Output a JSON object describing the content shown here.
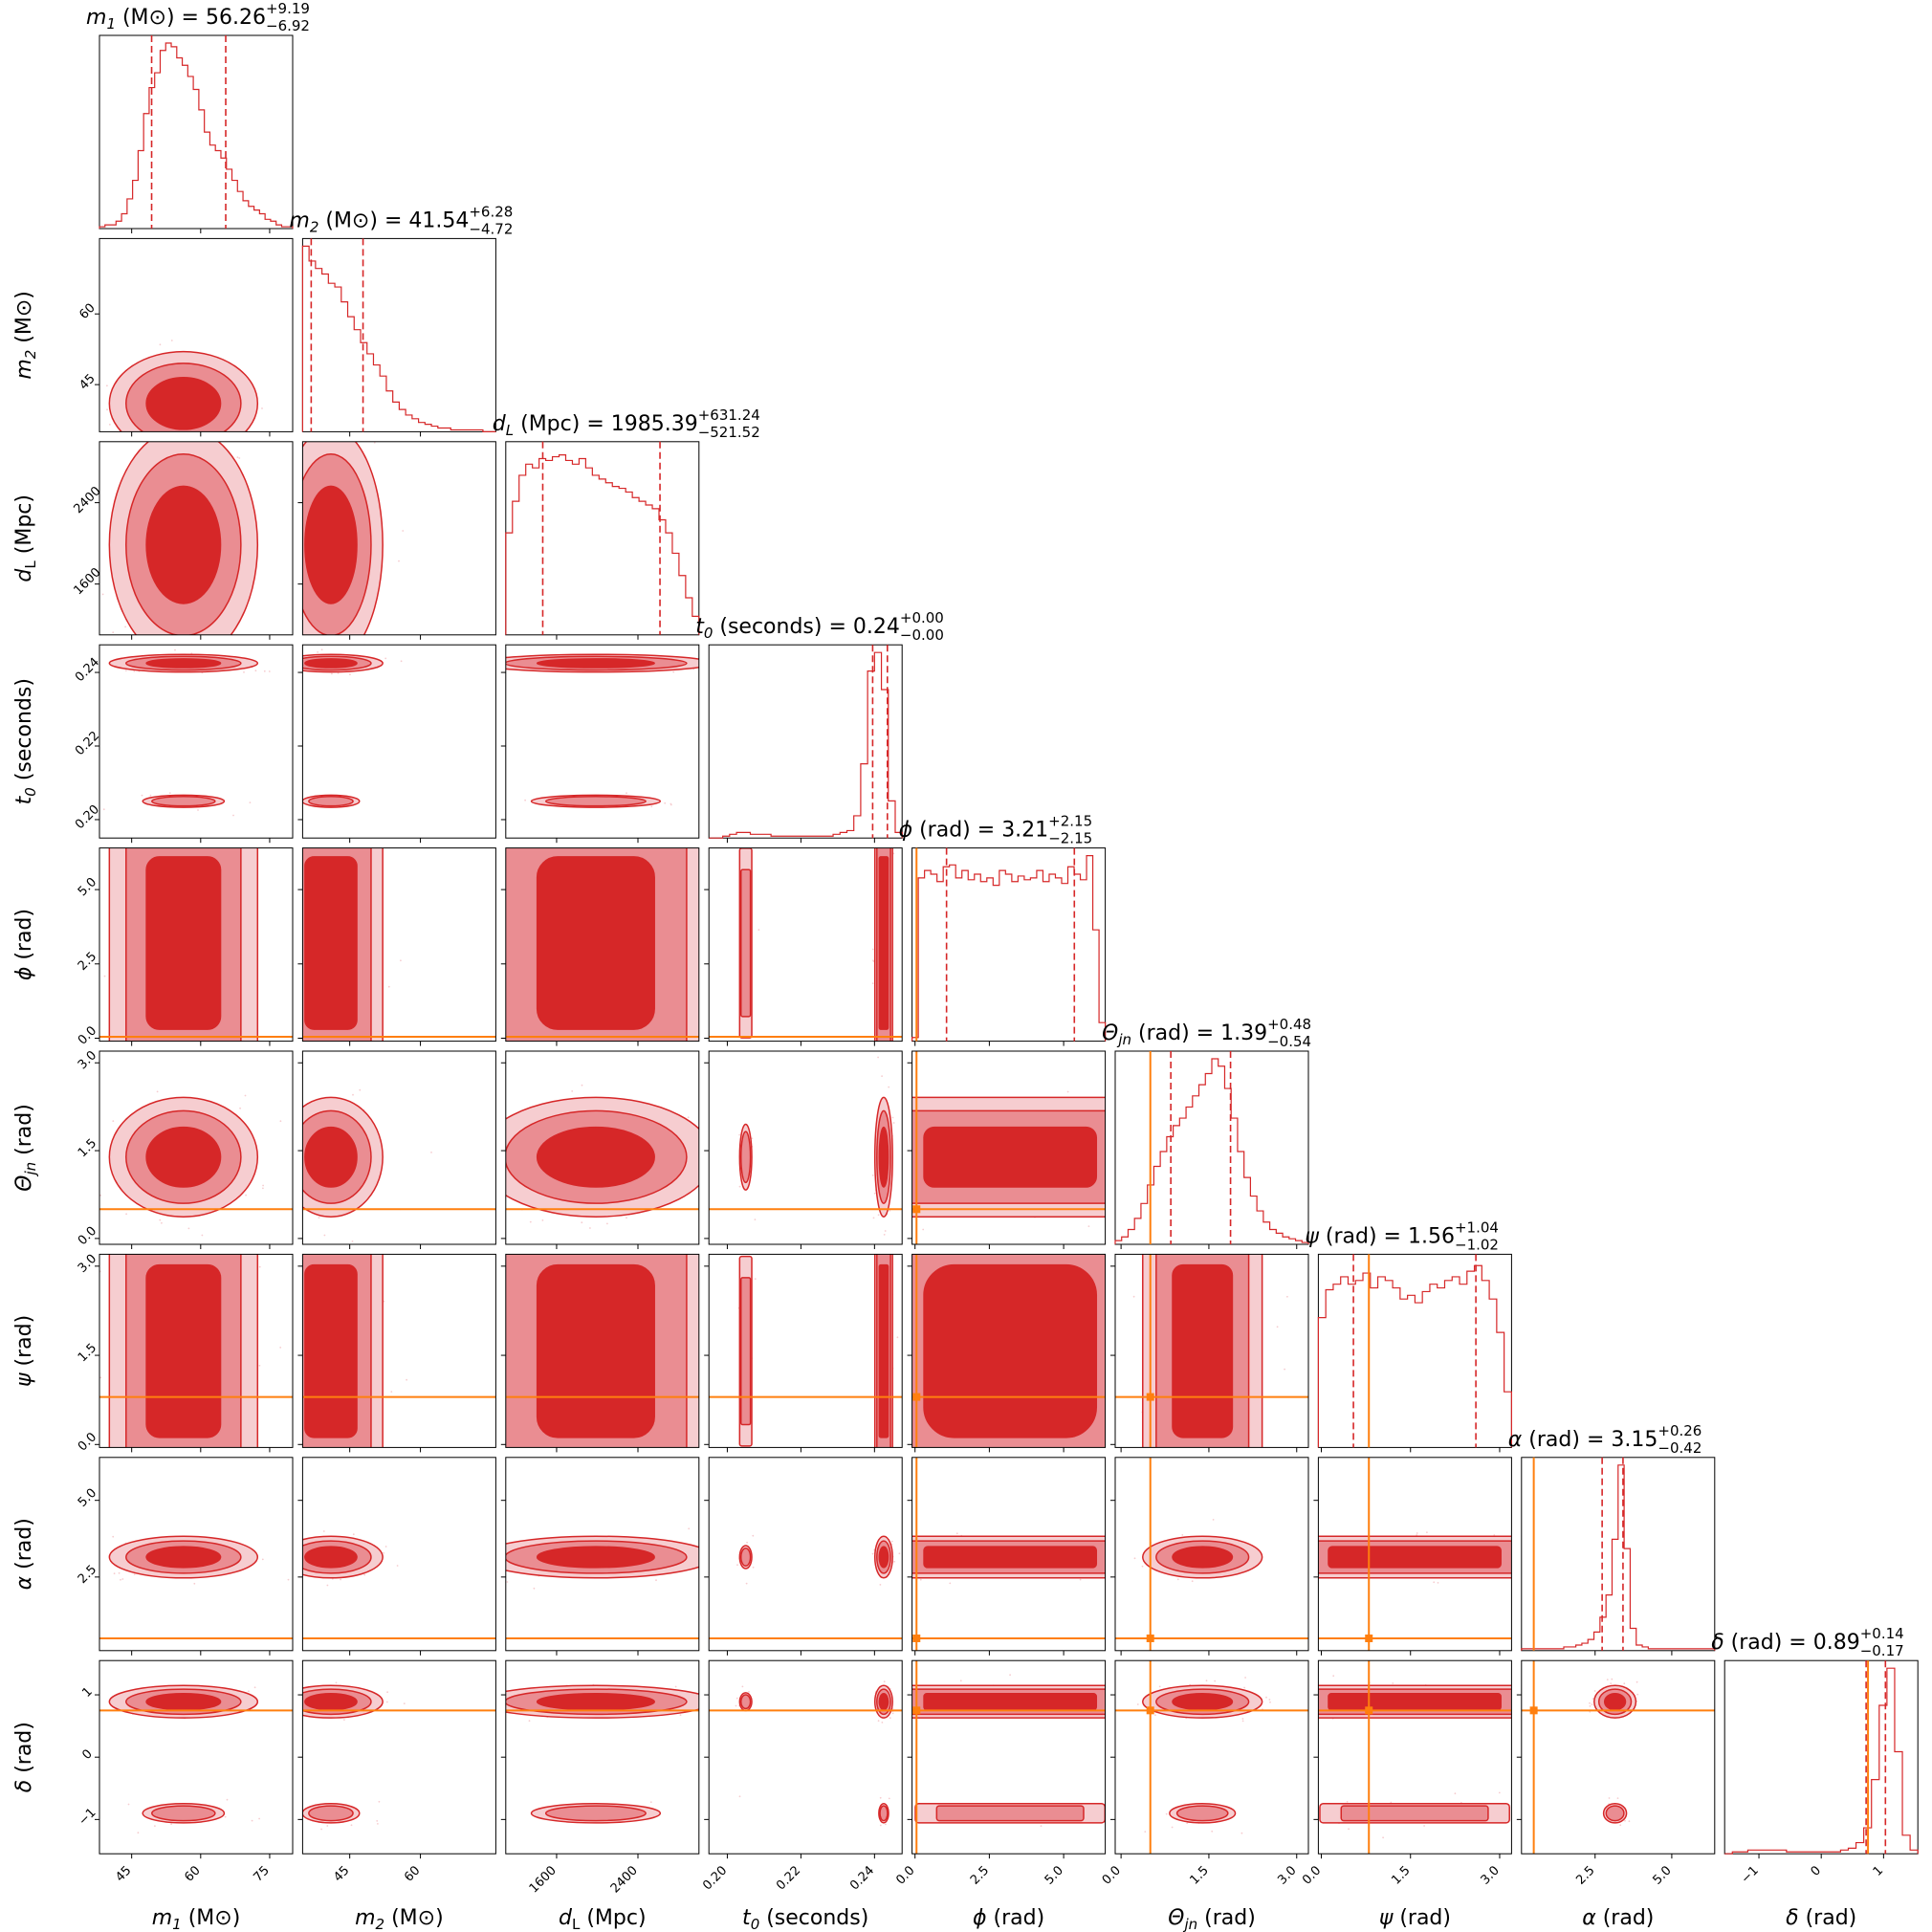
{
  "chart_data": {
    "type": "corner",
    "colors": {
      "posterior": "#d62728",
      "contour_inner": "#d62728",
      "contour_outer": "#ea8d92",
      "contour_outermost": "#f6cdd0",
      "truth": "#ff7f0e"
    },
    "parameters": [
      {
        "key": "m1",
        "label_sym": "m",
        "label_sub": "1",
        "label_unit": "(M⊙)",
        "title_value": "56.26",
        "err_plus": "+9.19",
        "err_minus": "−6.92",
        "range": [
          38,
          80
        ],
        "ticks": [
          45,
          60,
          75
        ],
        "median": 56.26,
        "q_lo": 49.34,
        "q_hi": 65.45,
        "truth": null
      },
      {
        "key": "m2",
        "label_sym": "m",
        "label_sub": "2",
        "label_unit": "(M⊙)",
        "title_value": "41.54",
        "err_plus": "+6.28",
        "err_minus": "−4.72",
        "range": [
          35,
          76
        ],
        "ticks": [
          45,
          60
        ],
        "median": 41.54,
        "q_lo": 36.82,
        "q_hi": 47.82,
        "truth": null
      },
      {
        "key": "dL",
        "label_sym": "d",
        "label_sub": "L",
        "label_unit": "(Mpc)",
        "title_value": "1985.39",
        "err_plus": "+631.24",
        "err_minus": "−521.52",
        "range": [
          1100,
          3000
        ],
        "ticks": [
          1600,
          2400
        ],
        "median": 1985.39,
        "q_lo": 1463.87,
        "q_hi": 2616.63,
        "truth": null
      },
      {
        "key": "t0",
        "label_sym": "t",
        "label_sub": "0",
        "label_unit": "(seconds)",
        "title_value": "0.24",
        "err_plus": "+0.00",
        "err_minus": "−0.00",
        "range": [
          0.195,
          0.2475
        ],
        "ticks": [
          0.2,
          0.22,
          0.24
        ],
        "tick_labels": [
          "0.20",
          "0.22",
          "0.24"
        ],
        "median": 0.241,
        "q_lo": 0.2395,
        "q_hi": 0.2435,
        "truth": null
      },
      {
        "key": "phi",
        "label_sym": "ϕ",
        "label_sub": "",
        "label_unit": "(rad)",
        "title_value": "3.21",
        "err_plus": "+2.15",
        "err_minus": "−2.15",
        "range": [
          -0.1,
          6.4
        ],
        "ticks": [
          0.0,
          2.5,
          5.0
        ],
        "tick_labels": [
          "0.0",
          "2.5",
          "5.0"
        ],
        "median": 3.21,
        "q_lo": 1.06,
        "q_hi": 5.36,
        "truth": 0.05
      },
      {
        "key": "theta_jn",
        "label_sym": "Θ",
        "label_sub": "jn",
        "label_unit": "(rad)",
        "title_value": "1.39",
        "err_plus": "+0.48",
        "err_minus": "−0.54",
        "range": [
          -0.1,
          3.2
        ],
        "ticks": [
          0.0,
          1.5,
          3.0
        ],
        "tick_labels": [
          "0.0",
          "1.5",
          "3.0"
        ],
        "median": 1.39,
        "q_lo": 0.85,
        "q_hi": 1.87,
        "truth": 0.5
      },
      {
        "key": "psi",
        "label_sym": "ψ",
        "label_sub": "",
        "label_unit": "(rad)",
        "title_value": "1.56",
        "err_plus": "+1.04",
        "err_minus": "−1.02",
        "range": [
          -0.05,
          3.2
        ],
        "ticks": [
          0.0,
          1.5,
          3.0
        ],
        "tick_labels": [
          "0.0",
          "1.5",
          "3.0"
        ],
        "median": 1.56,
        "q_lo": 0.54,
        "q_hi": 2.6,
        "truth": 0.8
      },
      {
        "key": "alpha",
        "label_sym": "α",
        "label_sub": "",
        "label_unit": "(rad)",
        "title_value": "3.15",
        "err_plus": "+0.26",
        "err_minus": "−0.42",
        "range": [
          0.1,
          6.4
        ],
        "ticks": [
          2.5,
          5.0
        ],
        "tick_labels": [
          "2.5",
          "5.0"
        ],
        "median": 3.15,
        "q_lo": 2.73,
        "q_hi": 3.41,
        "truth": 0.5
      },
      {
        "key": "delta",
        "label_sym": "δ",
        "label_sub": "",
        "label_unit": "(rad)",
        "title_value": "0.89",
        "err_plus": "+0.14",
        "err_minus": "−0.17",
        "range": [
          -1.55,
          1.55
        ],
        "ticks": [
          -1,
          0,
          1
        ],
        "tick_labels": [
          "−1",
          "0",
          "1"
        ],
        "median": 0.89,
        "q_lo": 0.72,
        "q_hi": 1.03,
        "truth": 0.75
      }
    ],
    "histograms": {
      "m1": [
        1,
        2,
        2,
        4,
        8,
        16,
        26,
        42,
        62,
        76,
        84,
        96,
        100,
        98,
        92,
        88,
        82,
        75,
        64,
        52,
        45,
        42,
        38,
        32,
        26,
        20,
        15,
        12,
        10,
        8,
        5,
        4,
        2,
        1,
        1
      ],
      "m2": [
        100,
        92,
        88,
        85,
        80,
        78,
        70,
        62,
        55,
        48,
        42,
        36,
        30,
        22,
        16,
        12,
        9,
        7,
        5,
        4,
        3,
        2,
        2,
        1,
        1,
        1,
        1,
        1,
        0,
        0
      ],
      "dL": [
        55,
        72,
        86,
        92,
        90,
        95,
        94,
        96,
        97,
        94,
        92,
        95,
        90,
        86,
        84,
        82,
        80,
        79,
        77,
        74,
        72,
        70,
        68,
        62,
        55,
        44,
        32,
        20,
        10
      ],
      "t0": [
        0,
        0,
        1,
        2,
        3,
        3,
        2,
        2,
        2,
        1,
        1,
        1,
        1,
        1,
        1,
        1,
        1,
        1,
        2,
        3,
        4,
        12,
        40,
        90,
        100,
        80,
        20,
        3
      ],
      "phi": [
        2,
        88,
        92,
        90,
        86,
        94,
        95,
        88,
        92,
        87,
        90,
        86,
        88,
        84,
        92,
        90,
        86,
        89,
        87,
        88,
        92,
        86,
        90,
        88,
        85,
        94,
        90,
        87,
        100,
        60,
        10
      ],
      "theta_jn": [
        2,
        4,
        8,
        14,
        22,
        32,
        42,
        50,
        58,
        64,
        68,
        74,
        80,
        86,
        92,
        100,
        96,
        84,
        68,
        50,
        36,
        26,
        18,
        12,
        8,
        6,
        4,
        3,
        2,
        1
      ],
      "psi": [
        70,
        85,
        88,
        92,
        88,
        90,
        94,
        86,
        92,
        90,
        86,
        80,
        82,
        78,
        84,
        88,
        86,
        90,
        92,
        88,
        95,
        98,
        90,
        80,
        62,
        30
      ],
      "alpha": [
        1,
        1,
        1,
        1,
        1,
        1,
        1,
        2,
        2,
        3,
        4,
        6,
        10,
        18,
        30,
        60,
        100,
        55,
        12,
        3,
        2,
        1,
        1,
        1,
        1,
        1,
        1,
        1,
        1,
        1,
        1,
        1
      ],
      "delta": [
        0,
        1,
        1,
        2,
        2,
        2,
        2,
        2,
        1,
        1,
        1,
        1,
        1,
        1,
        1,
        2,
        3,
        6,
        14,
        40,
        80,
        100,
        55,
        10,
        2
      ]
    }
  }
}
